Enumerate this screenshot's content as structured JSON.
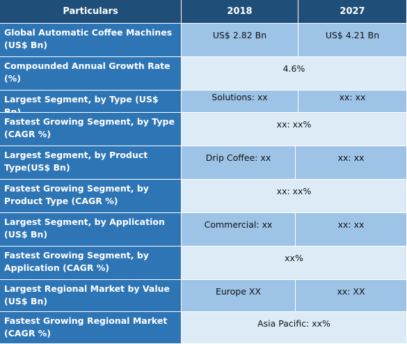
{
  "header": {
    "particulars": "Particulars",
    "year1": "2018",
    "year2": "2027"
  },
  "rows": [
    {
      "label": "Global Automatic Coffee Machines (US$ Bn)",
      "v2018": "US$ 2.82 Bn",
      "v2027": "US$ 4.21 Bn"
    },
    {
      "label": "Compounded Annual Growth Rate (%)",
      "merged": "4.6%"
    },
    {
      "label": "Largest Segment, by Type (US$ Bn)",
      "v2018": "Solutions: xx",
      "v2027": "xx: xx"
    },
    {
      "label": "Fastest Growing Segment, by Type (CAGR %)",
      "merged": "xx:  xx%"
    },
    {
      "label": "Largest Segment, by Product Type(US$ Bn)",
      "v2018": "Drip Coffee: xx",
      "v2027": "xx: xx"
    },
    {
      "label": "Fastest Growing Segment, by Product Type (CAGR %)",
      "merged": "xx:  xx%"
    },
    {
      "label": "Largest Segment, by Application (US$ Bn)",
      "v2018": "Commercial: xx",
      "v2027": "xx: xx"
    },
    {
      "label": "Fastest Growing Segment, by Application (CAGR %)",
      "merged": "xx%"
    },
    {
      "label": "Largest Regional Market by Value (US$ Bn)",
      "v2018": "Europe XX",
      "v2027": "xx: XX"
    },
    {
      "label": "Fastest Growing Regional Market (CAGR %)",
      "merged": "Asia Pacific: xx%"
    }
  ]
}
